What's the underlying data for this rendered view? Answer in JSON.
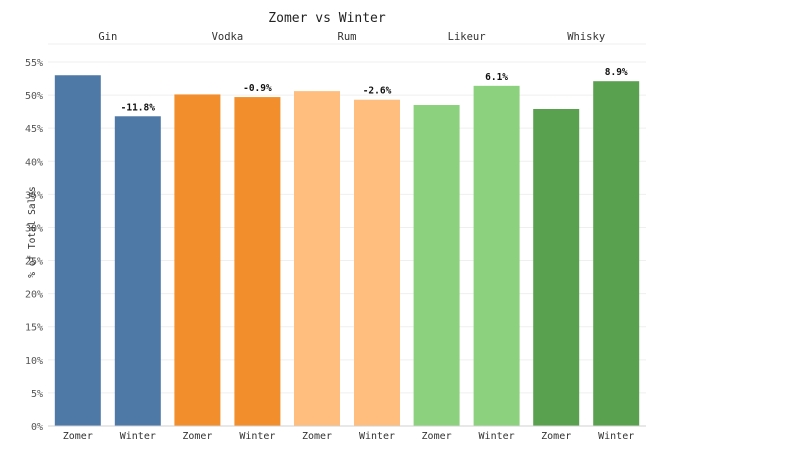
{
  "chart_data": {
    "type": "bar",
    "title": "Zomer vs Winter",
    "ylabel": "% of Total Sales",
    "xlabel": "",
    "ylim": [
      0,
      55
    ],
    "yticks": [
      0,
      5,
      10,
      15,
      20,
      25,
      30,
      35,
      40,
      45,
      50,
      55
    ],
    "ytick_suffix": "%",
    "grid": true,
    "groups": [
      {
        "name": "Gin",
        "color": "#4e79a7",
        "bars": [
          {
            "label": "Zomer",
            "value": 53.0,
            "annotation": ""
          },
          {
            "label": "Winter",
            "value": 46.8,
            "annotation": "-11.8%"
          }
        ]
      },
      {
        "name": "Vodka",
        "color": "#f28e2b",
        "bars": [
          {
            "label": "Zomer",
            "value": 50.1,
            "annotation": ""
          },
          {
            "label": "Winter",
            "value": 49.7,
            "annotation": "-0.9%"
          }
        ]
      },
      {
        "name": "Rum",
        "color": "#ffbe7d",
        "bars": [
          {
            "label": "Zomer",
            "value": 50.6,
            "annotation": ""
          },
          {
            "label": "Winter",
            "value": 49.3,
            "annotation": "-2.6%"
          }
        ]
      },
      {
        "name": "Likeur",
        "color": "#8cd17d",
        "bars": [
          {
            "label": "Zomer",
            "value": 48.5,
            "annotation": ""
          },
          {
            "label": "Winter",
            "value": 51.4,
            "annotation": "6.1%"
          }
        ]
      },
      {
        "name": "Whisky",
        "color": "#59a14f",
        "bars": [
          {
            "label": "Zomer",
            "value": 47.9,
            "annotation": ""
          },
          {
            "label": "Winter",
            "value": 52.1,
            "annotation": "8.9%"
          }
        ]
      }
    ]
  }
}
